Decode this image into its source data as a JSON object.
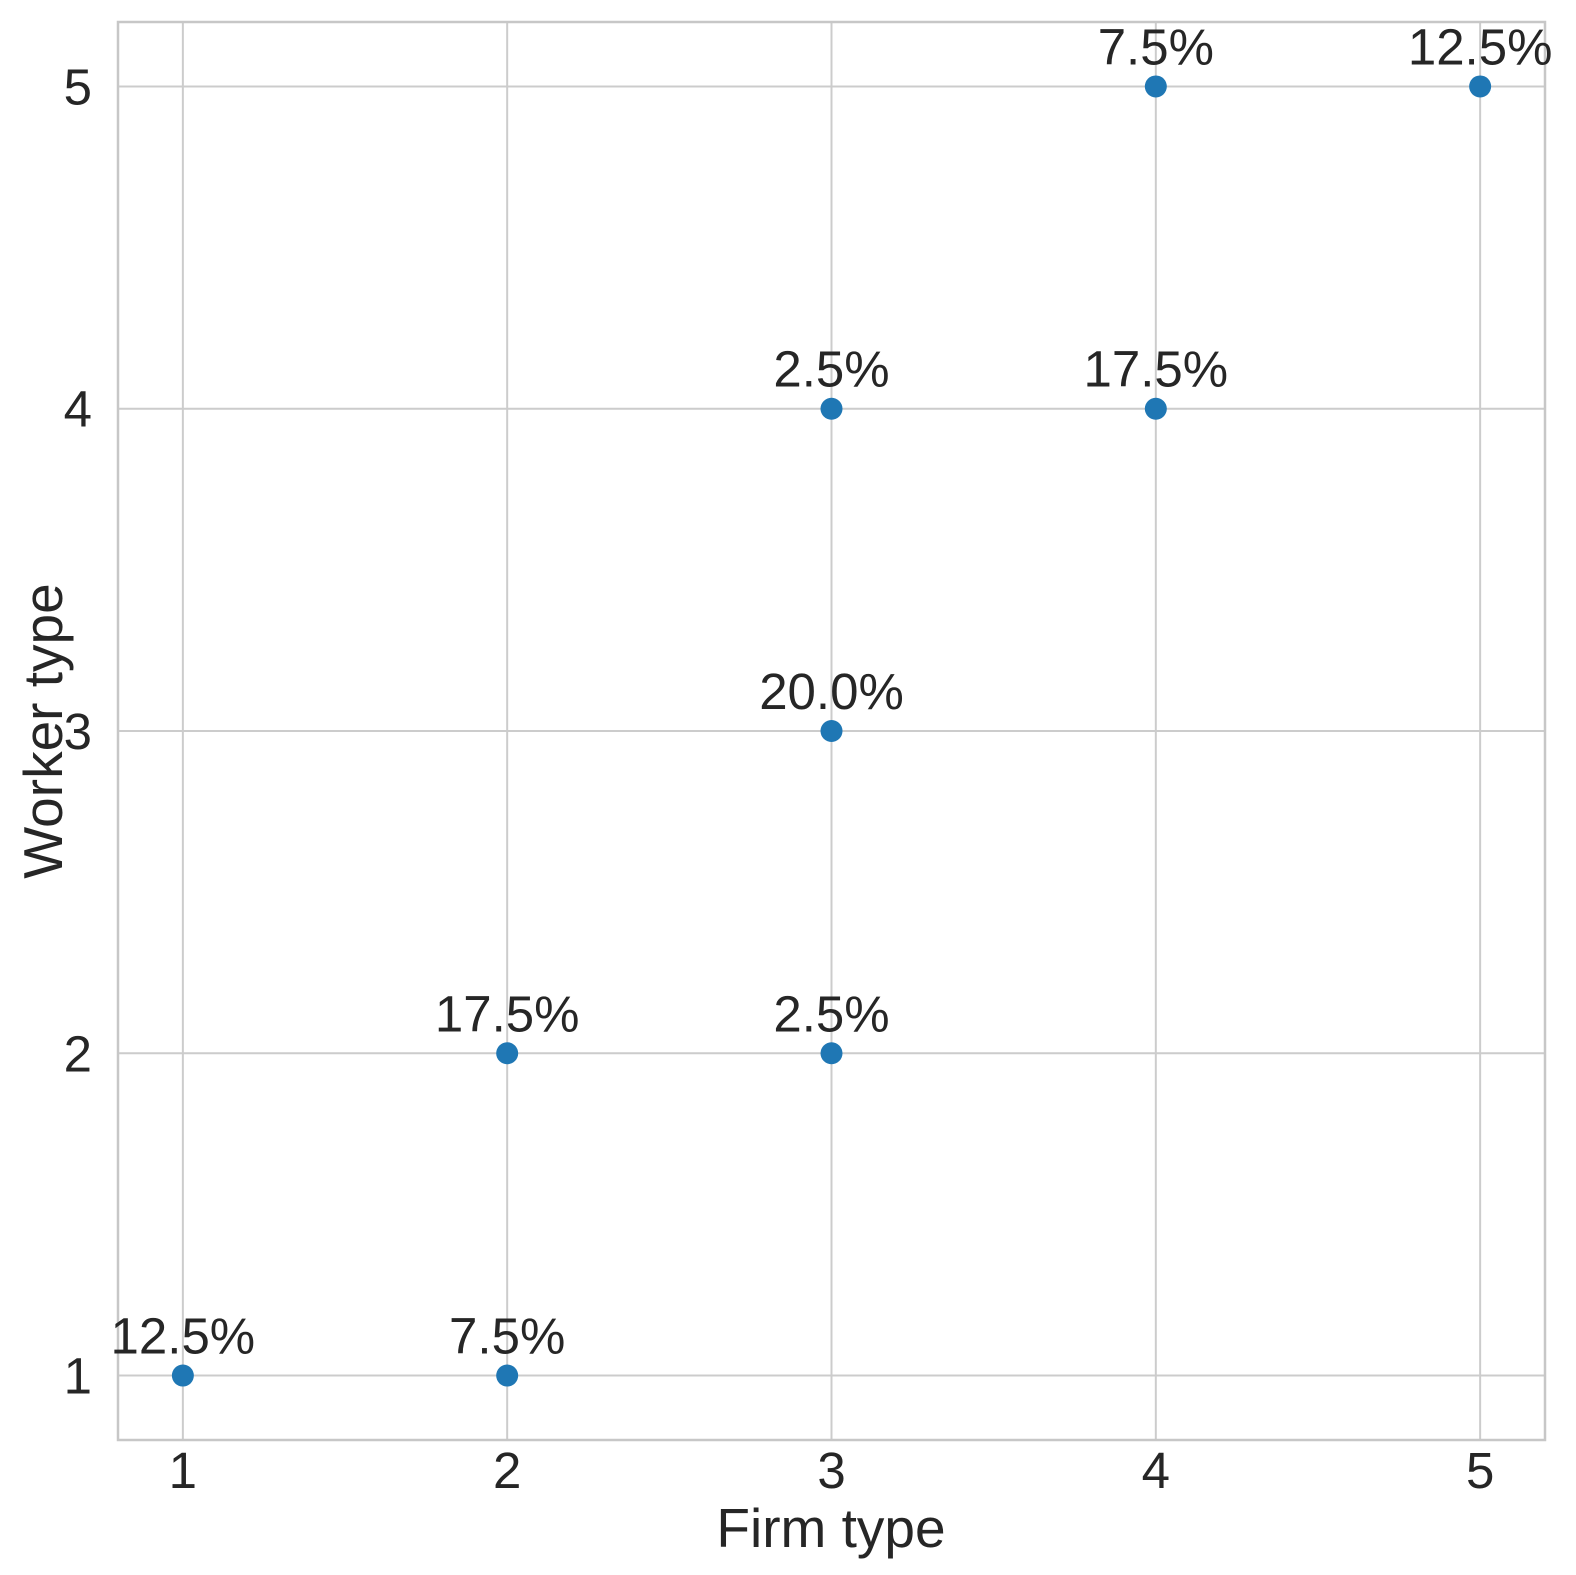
{
  "chart_data": {
    "type": "scatter",
    "title": "",
    "xlabel": "Firm type",
    "ylabel": "Worker type",
    "xlim": [
      0.8,
      5.2
    ],
    "ylim": [
      0.8,
      5.2
    ],
    "xticks": [
      1,
      2,
      3,
      4,
      5
    ],
    "yticks": [
      1,
      2,
      3,
      4,
      5
    ],
    "grid": true,
    "legend": "none",
    "points": [
      {
        "x": 1,
        "y": 1,
        "label": "12.5%"
      },
      {
        "x": 2,
        "y": 1,
        "label": "7.5%"
      },
      {
        "x": 2,
        "y": 2,
        "label": "17.5%"
      },
      {
        "x": 3,
        "y": 2,
        "label": "2.5%"
      },
      {
        "x": 3,
        "y": 3,
        "label": "20.0%"
      },
      {
        "x": 3,
        "y": 4,
        "label": "2.5%"
      },
      {
        "x": 4,
        "y": 4,
        "label": "17.5%"
      },
      {
        "x": 4,
        "y": 5,
        "label": "7.5%"
      },
      {
        "x": 5,
        "y": 5,
        "label": "12.5%"
      }
    ],
    "colors": {
      "point": "#1f77b4",
      "grid": "#cccccc",
      "spine": "#c7c7c7",
      "text": "#262626"
    }
  }
}
